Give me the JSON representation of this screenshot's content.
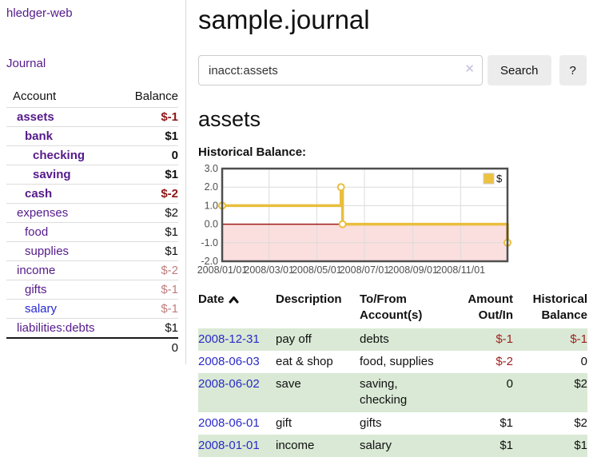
{
  "app": {
    "brand": "hledger-web",
    "nav_journal": "Journal"
  },
  "sidebar": {
    "columns": {
      "account": "Account",
      "balance": "Balance"
    },
    "accounts": [
      {
        "name": "assets",
        "depth": 1,
        "balance": "$-1",
        "emph": true,
        "neg": "strong"
      },
      {
        "name": "bank",
        "depth": 2,
        "balance": "$1",
        "emph": true,
        "neg": ""
      },
      {
        "name": "checking",
        "depth": 3,
        "balance": "0",
        "emph": true,
        "neg": ""
      },
      {
        "name": "saving",
        "depth": 3,
        "balance": "$1",
        "emph": true,
        "neg": ""
      },
      {
        "name": "cash",
        "depth": 2,
        "balance": "$-2",
        "emph": true,
        "neg": "strong"
      },
      {
        "name": "expenses",
        "depth": 1,
        "balance": "$2",
        "emph": false,
        "neg": ""
      },
      {
        "name": "food",
        "depth": 2,
        "balance": "$1",
        "emph": false,
        "neg": ""
      },
      {
        "name": "supplies",
        "depth": 2,
        "balance": "$1",
        "emph": false,
        "neg": ""
      },
      {
        "name": "income",
        "depth": 1,
        "balance": "$-2",
        "emph": false,
        "neg": "muted"
      },
      {
        "name": "gifts",
        "depth": 2,
        "balance": "$-1",
        "emph": false,
        "neg": "muted"
      },
      {
        "name": "salary",
        "depth": 2,
        "balance": "$-1",
        "emph": false,
        "neg": "muted",
        "link": "unvisited"
      },
      {
        "name": "liabilities:debts",
        "depth": 1,
        "balance": "$1",
        "emph": false,
        "neg": ""
      }
    ],
    "total": "0"
  },
  "main": {
    "title": "sample.journal",
    "search": {
      "value": "inacct:assets",
      "clear_icon": "✕",
      "search_button": "Search",
      "help_button": "?"
    },
    "account_title": "assets",
    "chart_heading": "Historical Balance:"
  },
  "chart_data": {
    "type": "line",
    "step": true,
    "title": "Historical Balance",
    "series": [
      {
        "name": "$",
        "color": "#e9be3d",
        "points": [
          {
            "date": "2008-01-01",
            "value": 1
          },
          {
            "date": "2008-06-01",
            "value": 2
          },
          {
            "date": "2008-06-03",
            "value": 0
          },
          {
            "date": "2008-12-31",
            "value": -1
          }
        ]
      }
    ],
    "x_range": [
      "2008-01-01",
      "2008-12-31"
    ],
    "xticks": [
      "2008/01/01",
      "2008/03/01",
      "2008/05/01",
      "2008/07/01",
      "2008/09/01",
      "2008/11/01"
    ],
    "yticks": [
      3.0,
      2.0,
      1.0,
      0.0,
      -1.0,
      -2.0
    ],
    "ylim": [
      -2,
      3
    ],
    "legend": {
      "label": "$",
      "position": "top-right"
    },
    "colors": {
      "line": "#e9be3d",
      "marker_fill": "#ffffff",
      "negative_fill": "#fbdede",
      "zero_line": "#a01818",
      "grid": "#dcdcdc",
      "border": "#4f4f4f",
      "tick_text": "#4f4f4f",
      "legend_box": "#edc240"
    }
  },
  "register": {
    "headers": [
      {
        "lines": [
          "Date"
        ],
        "sort": "asc",
        "align": "left"
      },
      {
        "lines": [
          "Description"
        ],
        "align": "left"
      },
      {
        "lines": [
          "To/From",
          "Account(s)"
        ],
        "align": "left"
      },
      {
        "lines": [
          "Amount",
          "Out/In"
        ],
        "align": "right"
      },
      {
        "lines": [
          "Historical",
          "Balance"
        ],
        "align": "right"
      }
    ],
    "rows": [
      {
        "date": "2008-12-31",
        "description": "pay off",
        "accounts": "debts",
        "amount": "$-1",
        "amount_neg": true,
        "balance": "$-1",
        "balance_neg": true
      },
      {
        "date": "2008-06-03",
        "description": "eat & shop",
        "accounts": "food, supplies",
        "amount": "$-2",
        "amount_neg": true,
        "balance": "0",
        "balance_neg": false
      },
      {
        "date": "2008-06-02",
        "description": "save",
        "accounts": "saving, checking",
        "amount": "0",
        "amount_neg": false,
        "balance": "$2",
        "balance_neg": false
      },
      {
        "date": "2008-06-01",
        "description": "gift",
        "accounts": "gifts",
        "amount": "$1",
        "amount_neg": false,
        "balance": "$2",
        "balance_neg": false
      },
      {
        "date": "2008-01-01",
        "description": "income",
        "accounts": "salary",
        "amount": "$1",
        "amount_neg": false,
        "balance": "$1",
        "balance_neg": false
      }
    ]
  }
}
